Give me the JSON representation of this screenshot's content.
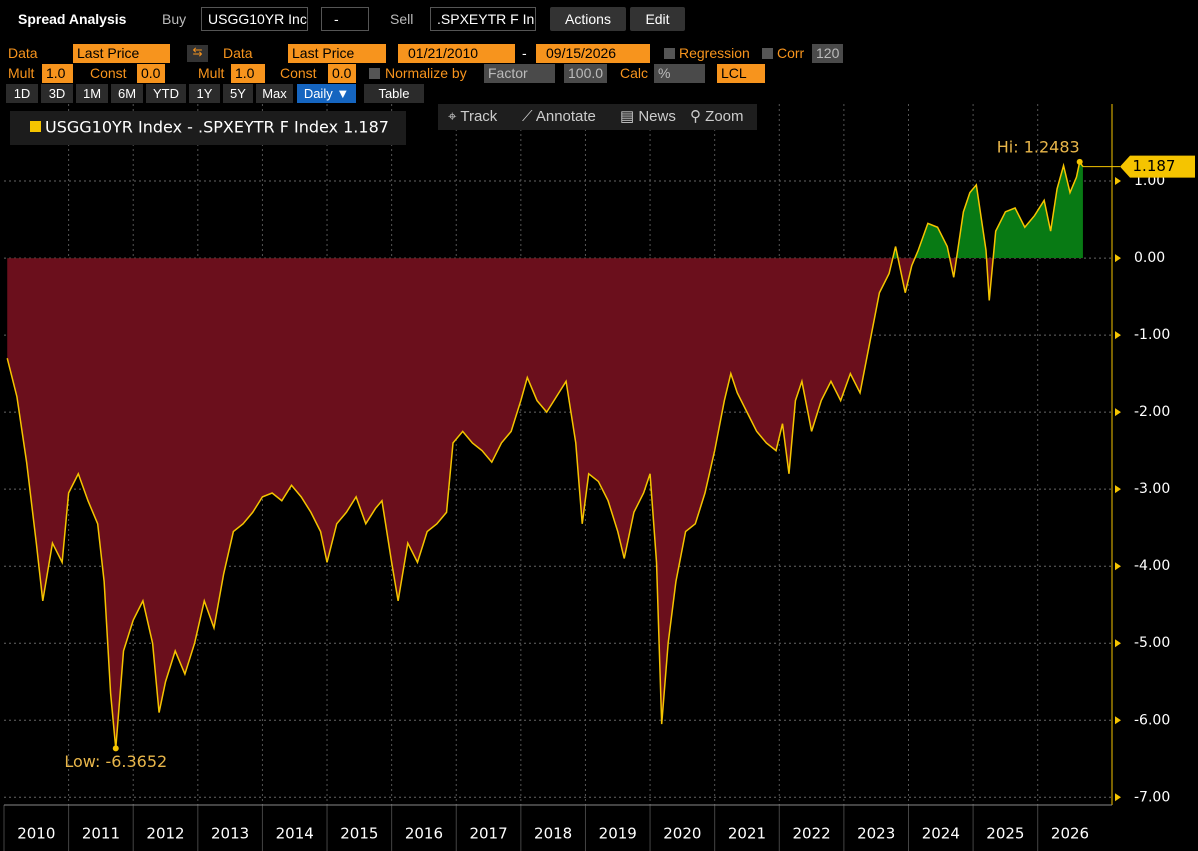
{
  "toolbar": {
    "title": "Spread Analysis",
    "buy_label": "Buy",
    "buy": "USGG10YR Inc",
    "buy_op": "-",
    "sell_label": "Sell",
    "sell": ".SPXEYTR F In",
    "actions": "Actions",
    "edit": "Edit"
  },
  "row1": [
    "Data",
    "Last Price",
    "Data",
    "Last Price",
    "01/21/2010",
    "-",
    "09/15/2026",
    "Regression",
    "Corr",
    "120"
  ],
  "row2": [
    "Mult",
    "1.0",
    "Const",
    "0.0",
    "Mult",
    "1.0",
    "Const",
    "0.0",
    "Normalize by",
    "Factor",
    "100.0",
    "Calc",
    "%",
    "LCL"
  ],
  "periods": [
    "1D",
    "3D",
    "1M",
    "6M",
    "YTD",
    "1Y",
    "5Y",
    "Max",
    "Daily ▼",
    "Table"
  ],
  "chart_tools": [
    "Track",
    "Annotate",
    "News",
    "Zoom"
  ],
  "chart_data": {
    "type": "area",
    "color": "#f5c400",
    "positive_color": "#087a14",
    "negative_color": "#6b0f1c",
    "annotations": [
      {
        "text": "Low: -6.3652"
      },
      {
        "text": "Hi: 1.2483"
      }
    ],
    "series": [
      {
        "name": "USGG10YR Index - .SPXEYTR F Index 1.187",
        "color": "#f5c400",
        "x": [
          2010.05,
          2010.2,
          2010.35,
          2010.5,
          2010.6,
          2010.75,
          2010.9,
          2011.0,
          2011.15,
          2011.3,
          2011.45,
          2011.55,
          2011.65,
          2011.73,
          2011.85,
          2012.0,
          2012.15,
          2012.3,
          2012.4,
          2012.5,
          2012.65,
          2012.8,
          2012.95,
          2013.1,
          2013.25,
          2013.4,
          2013.55,
          2013.7,
          2013.85,
          2014.0,
          2014.15,
          2014.3,
          2014.45,
          2014.6,
          2014.75,
          2014.9,
          2015.0,
          2015.15,
          2015.3,
          2015.45,
          2015.6,
          2015.75,
          2015.85,
          2016.0,
          2016.1,
          2016.25,
          2016.4,
          2016.55,
          2016.7,
          2016.85,
          2016.95,
          2017.1,
          2017.25,
          2017.4,
          2017.55,
          2017.7,
          2017.85,
          2018.0,
          2018.1,
          2018.25,
          2018.4,
          2018.55,
          2018.7,
          2018.85,
          2018.95,
          2019.05,
          2019.2,
          2019.35,
          2019.5,
          2019.6,
          2019.75,
          2019.9,
          2020.0,
          2020.1,
          2020.18,
          2020.28,
          2020.4,
          2020.55,
          2020.7,
          2020.85,
          2021.0,
          2021.15,
          2021.25,
          2021.35,
          2021.5,
          2021.65,
          2021.8,
          2021.95,
          2022.05,
          2022.15,
          2022.25,
          2022.35,
          2022.5,
          2022.65,
          2022.8,
          2022.95,
          2023.1,
          2023.25,
          2023.4,
          2023.55,
          2023.7,
          2023.8,
          2023.95,
          2024.05,
          2024.15,
          2024.3,
          2024.45,
          2024.6,
          2024.7,
          2024.85,
          2024.95,
          2025.05,
          2025.2,
          2025.25,
          2025.35,
          2025.5,
          2025.65,
          2025.8,
          2025.95,
          2026.1,
          2026.2,
          2026.3,
          2026.4,
          2026.5,
          2026.6,
          2026.65,
          2026.7
        ],
        "values": [
          -1.3,
          -1.8,
          -2.65,
          -3.7,
          -4.45,
          -3.7,
          -3.95,
          -3.05,
          -2.8,
          -3.15,
          -3.45,
          -4.2,
          -5.65,
          -6.3652,
          -5.1,
          -4.7,
          -4.45,
          -5.0,
          -5.9,
          -5.5,
          -5.1,
          -5.4,
          -5.0,
          -4.45,
          -4.8,
          -4.1,
          -3.55,
          -3.45,
          -3.3,
          -3.1,
          -3.05,
          -3.15,
          -2.95,
          -3.1,
          -3.3,
          -3.55,
          -3.95,
          -3.45,
          -3.3,
          -3.1,
          -3.45,
          -3.25,
          -3.15,
          -3.95,
          -4.45,
          -3.7,
          -3.95,
          -3.55,
          -3.45,
          -3.3,
          -2.4,
          -2.25,
          -2.4,
          -2.5,
          -2.65,
          -2.4,
          -2.25,
          -1.85,
          -1.55,
          -1.85,
          -2.0,
          -1.8,
          -1.6,
          -2.4,
          -3.45,
          -2.8,
          -2.9,
          -3.15,
          -3.55,
          -3.9,
          -3.3,
          -3.05,
          -2.8,
          -3.95,
          -6.05,
          -5.0,
          -4.2,
          -3.55,
          -3.45,
          -3.05,
          -2.5,
          -1.85,
          -1.5,
          -1.75,
          -2.0,
          -2.25,
          -2.4,
          -2.5,
          -2.15,
          -2.8,
          -1.85,
          -1.6,
          -2.25,
          -1.85,
          -1.6,
          -1.85,
          -1.5,
          -1.75,
          -1.1,
          -0.45,
          -0.2,
          0.15,
          -0.45,
          -0.1,
          0.1,
          0.45,
          0.4,
          0.15,
          -0.25,
          0.6,
          0.85,
          0.95,
          0.1,
          -0.55,
          0.35,
          0.6,
          0.65,
          0.4,
          0.55,
          0.75,
          0.35,
          0.9,
          1.2,
          0.85,
          1.05,
          1.2483,
          1.187
        ]
      }
    ],
    "xlim": [
      2010,
      2027.15
    ],
    "xticks": [
      2010,
      2011,
      2012,
      2013,
      2014,
      2015,
      2016,
      2017,
      2018,
      2019,
      2020,
      2021,
      2022,
      2023,
      2024,
      2025,
      2026
    ],
    "ylim": [
      -7.1,
      2.0
    ],
    "yticks": [
      {
        "value": 1,
        "label": "1.00"
      },
      {
        "value": 0,
        "label": "0.00"
      },
      {
        "value": -1,
        "label": "-1.00"
      },
      {
        "value": -2,
        "label": "-2.00"
      },
      {
        "value": -3,
        "label": "-3.00"
      },
      {
        "value": -4,
        "label": "-4.00"
      },
      {
        "value": -5,
        "label": "-5.00"
      },
      {
        "value": -6,
        "label": "-6.00"
      },
      {
        "value": -7,
        "label": "-7.00"
      }
    ],
    "grid": true
  }
}
